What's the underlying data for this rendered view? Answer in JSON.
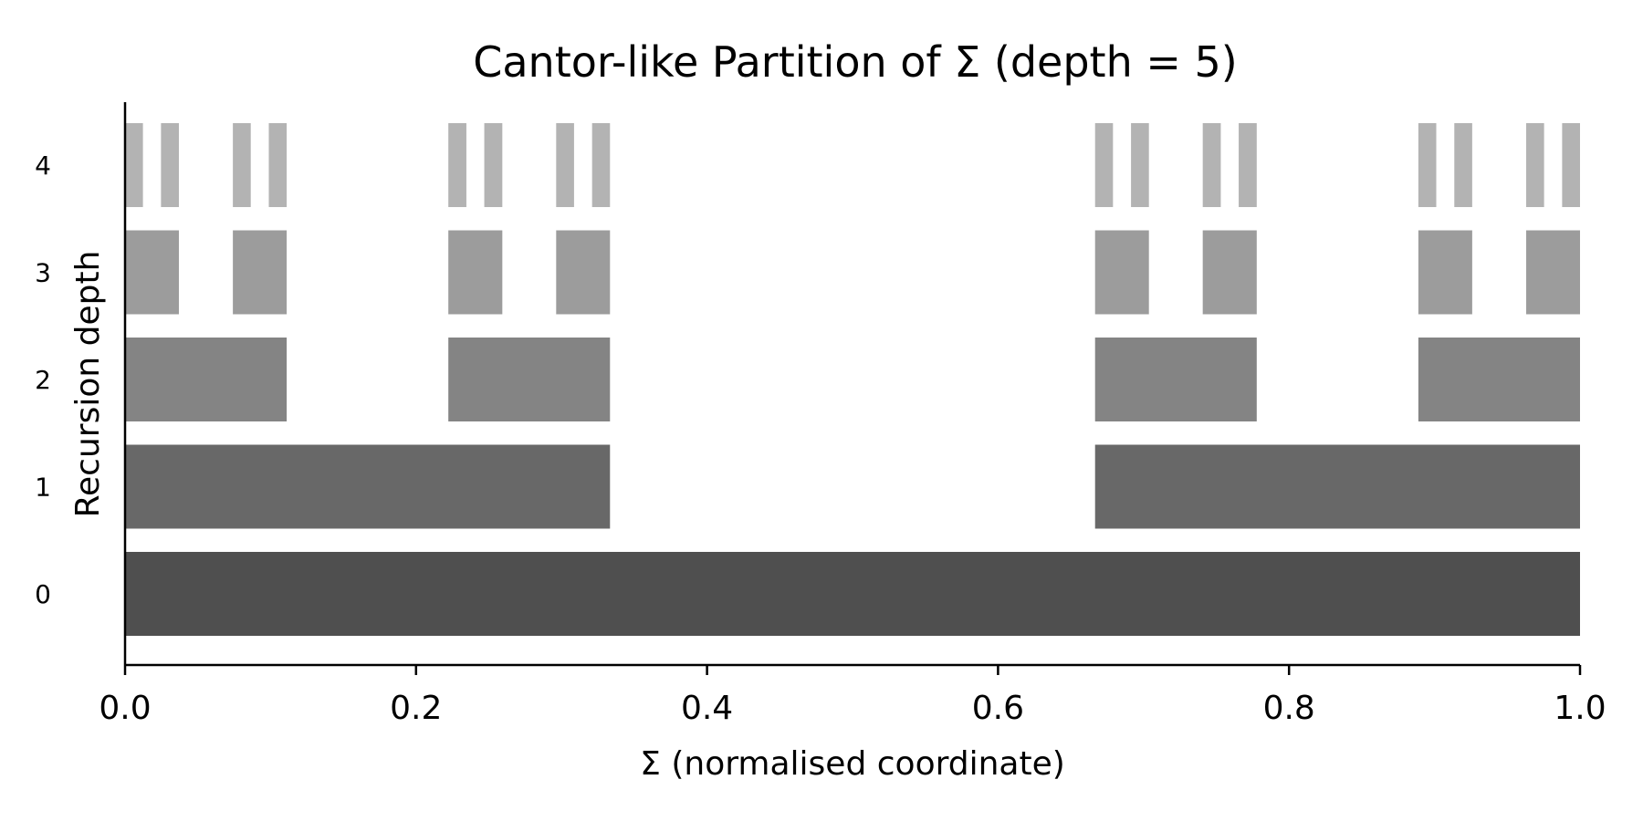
{
  "chart_data": {
    "type": "bar",
    "orientation": "horizontal-broken-bar",
    "title": "Cantor-like Partition of Σ (depth = 5)",
    "xlabel": "Σ (normalised coordinate)",
    "ylabel": "Recursion depth",
    "xlim": [
      0.0,
      1.0
    ],
    "xticks": [
      "0.0",
      "0.2",
      "0.4",
      "0.6",
      "0.8",
      "1.0"
    ],
    "yticks": [
      "0",
      "1",
      "2",
      "3",
      "4"
    ],
    "grid": false,
    "legend": "none",
    "series": [
      {
        "depth": 0,
        "color": "#4f4f4f",
        "intervals": [
          [
            0.0,
            1.0
          ]
        ]
      },
      {
        "depth": 1,
        "color": "#686868",
        "intervals": [
          [
            0.0,
            0.3333
          ],
          [
            0.6667,
            1.0
          ]
        ]
      },
      {
        "depth": 2,
        "color": "#848484",
        "intervals": [
          [
            0.0,
            0.1111
          ],
          [
            0.2222,
            0.3333
          ],
          [
            0.6667,
            0.7778
          ],
          [
            0.8889,
            1.0
          ]
        ]
      },
      {
        "depth": 3,
        "color": "#9c9c9c",
        "intervals": [
          [
            0.0,
            0.037
          ],
          [
            0.0741,
            0.1111
          ],
          [
            0.2222,
            0.2593
          ],
          [
            0.2963,
            0.3333
          ],
          [
            0.6667,
            0.7037
          ],
          [
            0.7407,
            0.7778
          ],
          [
            0.8889,
            0.9259
          ],
          [
            0.963,
            1.0
          ]
        ]
      },
      {
        "depth": 4,
        "color": "#b3b3b3",
        "intervals": [
          [
            0.0,
            0.0123
          ],
          [
            0.0247,
            0.037
          ],
          [
            0.0741,
            0.0864
          ],
          [
            0.0988,
            0.1111
          ],
          [
            0.2222,
            0.2346
          ],
          [
            0.2469,
            0.2593
          ],
          [
            0.2963,
            0.3086
          ],
          [
            0.321,
            0.3333
          ],
          [
            0.6667,
            0.679
          ],
          [
            0.6914,
            0.7037
          ],
          [
            0.7407,
            0.7531
          ],
          [
            0.7654,
            0.7778
          ],
          [
            0.8889,
            0.9012
          ],
          [
            0.9136,
            0.9259
          ],
          [
            0.963,
            0.9753
          ],
          [
            0.9877,
            1.0
          ]
        ]
      }
    ]
  }
}
